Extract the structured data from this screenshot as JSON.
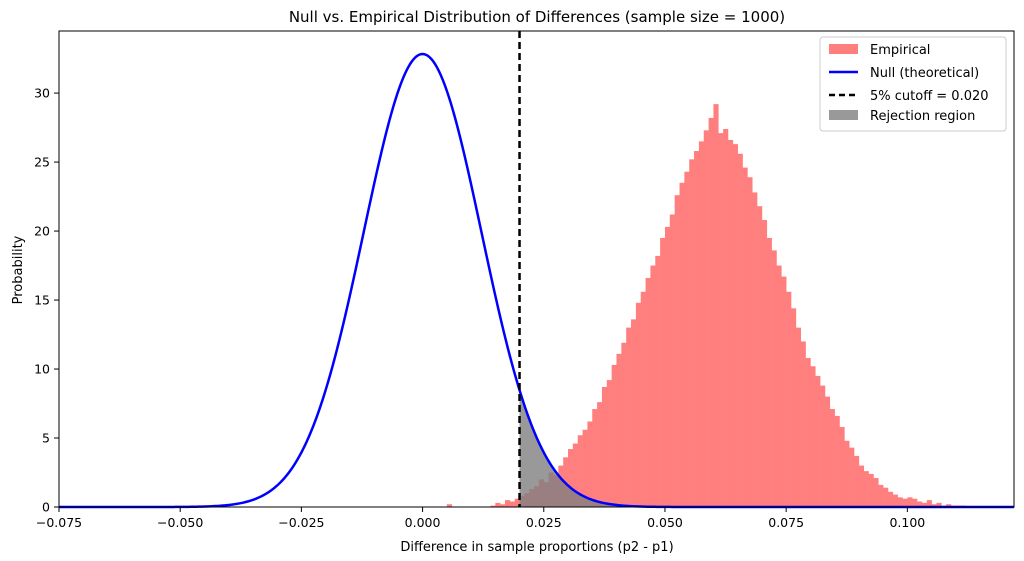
{
  "chart_data": {
    "type": "histogram+line",
    "title": "Null vs. Empirical Distribution of Differences (sample size = 1000)",
    "xlabel": "Difference in sample proportions (p2 - p1)",
    "ylabel": "Probability",
    "xlim": [
      -0.075,
      0.122
    ],
    "ylim": [
      0,
      34.5
    ],
    "xticks": [
      -0.075,
      -0.05,
      -0.025,
      0.0,
      0.025,
      0.05,
      0.075,
      0.1
    ],
    "xtick_labels": [
      "−0.075",
      "−0.050",
      "−0.025",
      "0.000",
      "0.025",
      "0.050",
      "0.075",
      "0.100"
    ],
    "yticks": [
      0,
      5,
      10,
      15,
      20,
      25,
      30
    ],
    "ytick_labels": [
      "0",
      "5",
      "10",
      "15",
      "20",
      "25",
      "30"
    ],
    "legend_position": "top-right",
    "legend": [
      {
        "label": "Empirical",
        "kind": "patch",
        "color": "#ff7f7f"
      },
      {
        "label": "Null (theoretical)",
        "kind": "line",
        "color": "#0000ff"
      },
      {
        "label": "5% cutoff = 0.020",
        "kind": "dashed",
        "color": "#000000"
      },
      {
        "label": "Rejection region",
        "kind": "patch",
        "color": "#999999"
      }
    ],
    "empirical": {
      "bin_width": 0.001,
      "color": "#ff7f7f",
      "bins_left": [
        0.005,
        0.014,
        0.015,
        0.016,
        0.017,
        0.018,
        0.019,
        0.02,
        0.021,
        0.022,
        0.023,
        0.024,
        0.025,
        0.026,
        0.027,
        0.028,
        0.029,
        0.03,
        0.031,
        0.032,
        0.033,
        0.034,
        0.035,
        0.036,
        0.037,
        0.038,
        0.039,
        0.04,
        0.041,
        0.042,
        0.043,
        0.044,
        0.045,
        0.046,
        0.047,
        0.048,
        0.049,
        0.05,
        0.051,
        0.052,
        0.053,
        0.054,
        0.055,
        0.056,
        0.057,
        0.058,
        0.059,
        0.06,
        0.061,
        0.062,
        0.063,
        0.064,
        0.065,
        0.066,
        0.067,
        0.068,
        0.069,
        0.07,
        0.071,
        0.072,
        0.073,
        0.074,
        0.075,
        0.076,
        0.077,
        0.078,
        0.079,
        0.08,
        0.081,
        0.082,
        0.083,
        0.084,
        0.085,
        0.086,
        0.087,
        0.088,
        0.089,
        0.09,
        0.091,
        0.092,
        0.093,
        0.094,
        0.095,
        0.096,
        0.097,
        0.098,
        0.099,
        0.1,
        0.101,
        0.102,
        0.103,
        0.104,
        0.105,
        0.106,
        0.107,
        0.108,
        0.109,
        0.11,
        0.111
      ],
      "values": [
        0.2,
        0.1,
        0.3,
        0.2,
        0.5,
        0.4,
        0.6,
        0.8,
        1.0,
        1.3,
        1.5,
        2.0,
        1.8,
        2.5,
        2.3,
        3.0,
        3.6,
        4.2,
        4.6,
        5.2,
        5.6,
        6.2,
        7.1,
        7.6,
        8.7,
        9.2,
        10.3,
        11.1,
        11.9,
        13.0,
        13.6,
        14.8,
        15.6,
        16.6,
        17.5,
        18.2,
        19.5,
        20.3,
        21.2,
        22.6,
        23.5,
        24.3,
        25.2,
        25.8,
        26.5,
        27.3,
        28.2,
        29.2,
        27.1,
        27.4,
        26.6,
        26.3,
        25.6,
        24.6,
        23.9,
        22.8,
        21.8,
        20.8,
        19.5,
        18.6,
        17.5,
        16.7,
        15.6,
        14.4,
        13.0,
        12.0,
        10.8,
        10.2,
        9.5,
        8.8,
        8.0,
        7.1,
        6.6,
        5.8,
        4.8,
        4.3,
        3.7,
        3.0,
        2.6,
        2.4,
        2.1,
        1.6,
        1.4,
        1.1,
        0.9,
        0.7,
        0.6,
        0.7,
        0.6,
        0.4,
        0.3,
        0.5,
        0.2,
        0.3,
        0.1,
        0.2,
        0.1,
        0.1,
        0.1
      ]
    },
    "null_curve": {
      "distribution": "normal",
      "mean": 0.0,
      "std": 0.01215,
      "color": "#0000ff",
      "x_range": [
        -0.075,
        0.122
      ]
    },
    "cutoff": {
      "x": 0.02,
      "color": "#000000",
      "style": "dashed"
    },
    "rejection_region": {
      "from": 0.02,
      "color": "#808080",
      "opacity": 0.8
    }
  }
}
